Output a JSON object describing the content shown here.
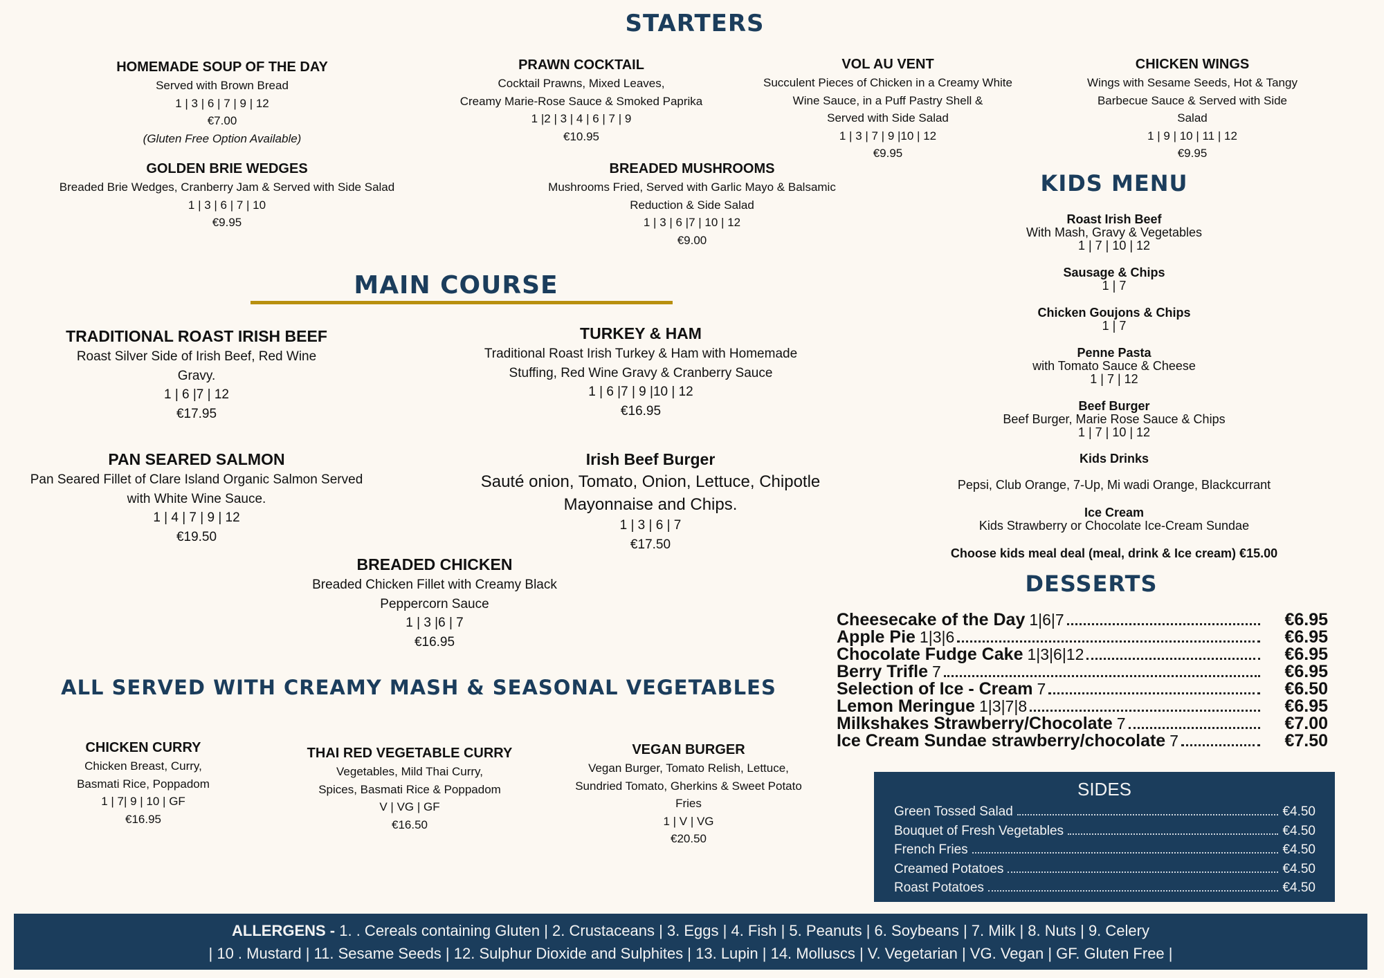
{
  "colors": {
    "navy": "#1b3d5c",
    "gold": "#b8900f",
    "background": "#fcf8f2"
  },
  "starters": {
    "title": "STARTERS",
    "items": [
      {
        "name": "HOMEMADE SOUP OF THE DAY",
        "lines": [
          "Served with Brown Bread",
          "1 | 3 | 6 | 7 | 9 | 12",
          "€7.00"
        ],
        "note": "(Gluten Free Option Available)"
      },
      {
        "name": "PRAWN COCKTAIL",
        "lines": [
          "Cocktail Prawns, Mixed Leaves,",
          "Creamy Marie-Rose Sauce & Smoked Paprika",
          "1 |2 | 3 | 4 | 6 | 7 | 9",
          "€10.95"
        ]
      },
      {
        "name": "VOL AU VENT",
        "lines": [
          "Succulent Pieces of Chicken in a Creamy White",
          "Wine Sauce, in a Puff Pastry Shell &",
          "Served with Side Salad",
          "1 | 3 |  7 | 9 |10 | 12",
          "€9.95"
        ]
      },
      {
        "name": "CHICKEN WINGS",
        "lines": [
          "Wings with Sesame Seeds, Hot & Tangy",
          "Barbecue Sauce & Served with Side",
          "Salad",
          "1 | 9 | 10 | 11 | 12",
          "€9.95"
        ]
      },
      {
        "name": "GOLDEN BRIE WEDGES",
        "lines": [
          "Breaded Brie Wedges, Cranberry Jam & Served with Side Salad",
          "1 | 3 | 6 | 7 | 10",
          "€9.95"
        ]
      },
      {
        "name": "BREADED  MUSHROOMS",
        "lines": [
          "Mushrooms Fried, Served with Garlic Mayo & Balsamic",
          "Reduction  & Side Salad",
          "1 | 3 | 6 |7 | 10 | 12",
          "€9.00"
        ]
      }
    ]
  },
  "main_course": {
    "title": "MAIN COURSE",
    "items": [
      {
        "name": "TRADITIONAL ROAST IRISH BEEF",
        "lines": [
          "Roast Silver Side of Irish Beef, Red Wine",
          "Gravy.",
          "1 | 6 |7  | 12",
          "€17.95"
        ]
      },
      {
        "name": "TURKEY & HAM",
        "lines": [
          "Traditional Roast Irish Turkey & Ham with Homemade",
          "Stuffing, Red Wine Gravy & Cranberry Sauce",
          "1 | 6 |7 | 9 |10 | 12",
          "€16.95"
        ]
      },
      {
        "name": "PAN SEARED SALMON",
        "lines": [
          "Pan Seared Fillet of Clare Island Organic Salmon Served",
          "with White Wine Sauce.",
          "1 | 4 | 7 | 9 | 12",
          "€19.50"
        ]
      },
      {
        "name": "Irish Beef Burger",
        "lines": [
          "Sauté onion, Tomato, Onion, Lettuce, Chipotle",
          "Mayonnaise and Chips.",
          "1 | 3 | 6 | 7",
          "€17.50"
        ]
      },
      {
        "name": "BREADED CHICKEN",
        "lines": [
          "Breaded Chicken Fillet with Creamy Black",
          "Peppercorn Sauce",
          "1 | 3 |6 | 7",
          "€16.95"
        ]
      }
    ],
    "served_with": "ALL SERVED WITH CREAMY MASH & SEASONAL VEGETABLES",
    "more_items": [
      {
        "name": "CHICKEN CURRY",
        "lines": [
          "Chicken Breast, Curry,",
          "Basmati Rice, Poppadom",
          "1 | 7| 9 | 10 | GF",
          "€16.95"
        ]
      },
      {
        "name": "THAI RED VEGETABLE CURRY",
        "lines": [
          "Vegetables, Mild Thai Curry,",
          "Spices, Basmati Rice & Poppadom",
          "V | VG | GF",
          "€16.50"
        ]
      },
      {
        "name": "VEGAN BURGER",
        "lines": [
          "Vegan Burger, Tomato Relish, Lettuce,",
          "Sundried Tomato, Gherkins  & Sweet Potato",
          "Fries",
          "1 |  V | VG",
          "€20.50"
        ]
      }
    ]
  },
  "kids_menu": {
    "title": "KIDS MENU",
    "items": [
      {
        "name": "Roast Irish Beef",
        "lines": [
          "With Mash, Gravy & Vegetables",
          "1 | 7 | 10 | 12"
        ]
      },
      {
        "name": "Sausage & Chips",
        "lines": [
          "1 | 7"
        ]
      },
      {
        "name": "Chicken Goujons & Chips",
        "lines": [
          "1 | 7"
        ]
      },
      {
        "name": "Penne Pasta",
        "lines": [
          "with Tomato Sauce & Cheese",
          "1 | 7 | 12"
        ]
      },
      {
        "name": "Beef Burger",
        "lines": [
          "Beef Burger, Marie Rose Sauce & Chips",
          "1 | 7 | 10 | 12"
        ]
      },
      {
        "name": "Kids Drinks",
        "lines": [
          "",
          "Pepsi, Club Orange, 7-Up, Mi wadi Orange, Blackcurrant"
        ]
      },
      {
        "name": "Ice Cream",
        "lines": [
          "Kids Strawberry or Chocolate Ice-Cream Sundae"
        ]
      }
    ],
    "deal": "Choose kids meal deal (meal, drink & Ice cream) €15.00"
  },
  "desserts": {
    "title": "DESSERTS",
    "items": [
      {
        "name": "Cheesecake of the Day",
        "allergens": "1|6|7",
        "price": "€6.95"
      },
      {
        "name": "Apple Pie",
        "allergens": "1|3|6",
        "price": "€6.95"
      },
      {
        "name": "Chocolate Fudge Cake",
        "allergens": "1|3|6|12",
        "price": "€6.95"
      },
      {
        "name": "Berry Trifle",
        "allergens": "7",
        "price": "€6.95"
      },
      {
        "name": "Selection of Ice - Cream",
        "allergens": "7",
        "price": "€6.50"
      },
      {
        "name": "Lemon Meringue",
        "allergens": "1|3|7|8",
        "price": "€6.95"
      },
      {
        "name": "Milkshakes Strawberry/Chocolate",
        "allergens": "7",
        "price": "€7.00"
      },
      {
        "name": "Ice Cream Sundae strawberry/chocolate",
        "allergens": "7",
        "price": "€7.50"
      }
    ]
  },
  "sides": {
    "title": "SIDES",
    "items": [
      {
        "name": "Green Tossed Salad",
        "price": "€4.50"
      },
      {
        "name": "Bouquet of Fresh Vegetables",
        "price": "€4.50"
      },
      {
        "name": "French Fries",
        "price": "€4.50"
      },
      {
        "name": "Creamed Potatoes",
        "price": "€4.50"
      },
      {
        "name": "Roast Potatoes",
        "price": "€4.50"
      }
    ]
  },
  "allergens": {
    "label": "ALLERGENS - ",
    "line1": "1. . Cereals containing Gluten | 2. Crustaceans | 3. Eggs | 4. Fish | 5. Peanuts | 6. Soybeans | 7. Milk | 8. Nuts | 9. Celery",
    "line2": "| 10 . Mustard | 11. Sesame Seeds | 12. Sulphur Dioxide and Sulphites | 13. Lupin | 14. Molluscs  | V. Vegetarian | VG. Vegan | GF. Gluten Free |"
  }
}
